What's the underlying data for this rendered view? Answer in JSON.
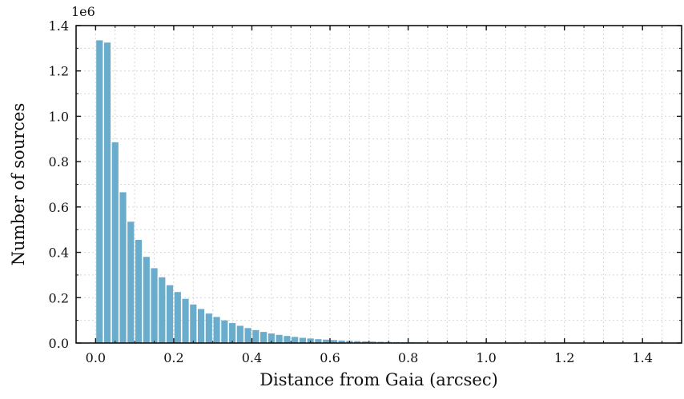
{
  "chart_data": {
    "type": "bar",
    "title": "",
    "xlabel": "Distance from Gaia (arcsec)",
    "ylabel": "Number of sources",
    "y_offset_label": "1e6",
    "xlim": [
      -0.05,
      1.5
    ],
    "ylim": [
      0,
      1.4
    ],
    "x_ticks": [
      "0.0",
      "0.2",
      "0.4",
      "0.6",
      "0.8",
      "1.0",
      "1.2",
      "1.4"
    ],
    "x_tick_values": [
      0.0,
      0.2,
      0.4,
      0.6,
      0.8,
      1.0,
      1.2,
      1.4
    ],
    "y_ticks": [
      "0.0",
      "0.2",
      "0.4",
      "0.6",
      "0.8",
      "1.0",
      "1.2",
      "1.4"
    ],
    "y_tick_values": [
      0.0,
      0.2,
      0.4,
      0.6,
      0.8,
      1.0,
      1.2,
      1.4
    ],
    "bar_color": "#6aaccb",
    "bin_width": 0.02,
    "grid": true,
    "series": [
      {
        "x": [
          0.01,
          0.03,
          0.05,
          0.07,
          0.09,
          0.11,
          0.13,
          0.15,
          0.17,
          0.19,
          0.21,
          0.23,
          0.25,
          0.27,
          0.29,
          0.31,
          0.33,
          0.35,
          0.37,
          0.39,
          0.41,
          0.43,
          0.45,
          0.47,
          0.49,
          0.51,
          0.53,
          0.55,
          0.57,
          0.59,
          0.61,
          0.63,
          0.65,
          0.67,
          0.69,
          0.71,
          0.73,
          0.75,
          0.77,
          0.79,
          0.81,
          0.83,
          0.85,
          0.87,
          0.89,
          0.91,
          0.93,
          0.95,
          0.97,
          0.99,
          1.01,
          1.03,
          1.05,
          1.07,
          1.09,
          1.11,
          1.13,
          1.15,
          1.17,
          1.19,
          1.21,
          1.23,
          1.25,
          1.27,
          1.29,
          1.31,
          1.33,
          1.35,
          1.37,
          1.39,
          1.41,
          1.43
        ],
        "values": [
          1.335,
          1.325,
          0.885,
          0.665,
          0.535,
          0.455,
          0.38,
          0.33,
          0.29,
          0.255,
          0.225,
          0.195,
          0.17,
          0.15,
          0.13,
          0.115,
          0.1,
          0.088,
          0.076,
          0.066,
          0.057,
          0.049,
          0.042,
          0.036,
          0.031,
          0.027,
          0.023,
          0.02,
          0.017,
          0.015,
          0.013,
          0.011,
          0.0095,
          0.0083,
          0.0072,
          0.0063,
          0.0055,
          0.0048,
          0.0042,
          0.0037,
          0.0032,
          0.0028,
          0.0025,
          0.0022,
          0.0019,
          0.0017,
          0.0015,
          0.0013,
          0.0012,
          0.0011,
          0.001,
          0.0009,
          0.0008,
          0.0007,
          0.0006,
          0.0006,
          0.0005,
          0.0005,
          0.0004,
          0.0004,
          0.0004,
          0.0003,
          0.0003,
          0.0003,
          0.0003,
          0.0002,
          0.0002,
          0.0002,
          0.0002,
          0.0002,
          0.0002,
          0.0001
        ]
      }
    ]
  }
}
